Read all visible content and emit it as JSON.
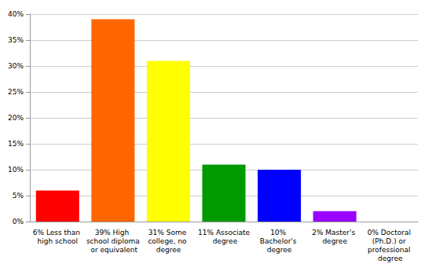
{
  "chart_data": {
    "type": "bar",
    "categories": [
      "6% Less than high school",
      "39% High school diploma or equivalent",
      "31% Some college, no degree",
      "11% Associate degree",
      "10% Bachelor's degree",
      "2% Master's degree",
      "0% Doctoral (Ph.D.) or professional degree"
    ],
    "values": [
      6,
      39,
      31,
      11,
      10,
      2,
      0
    ],
    "colors": [
      "#ff0000",
      "#ff6600",
      "#ffff00",
      "#009900",
      "#0000ff",
      "#9900ff",
      "#ff00ff"
    ],
    "ylim": [
      0,
      40
    ],
    "yticks": [
      {
        "value": 0,
        "label": "0%"
      },
      {
        "value": 5,
        "label": "5%"
      },
      {
        "value": 10,
        "label": "10%"
      },
      {
        "value": 15,
        "label": "15%"
      },
      {
        "value": 20,
        "label": "20%"
      },
      {
        "value": 25,
        "label": "25%"
      },
      {
        "value": 30,
        "label": "30%"
      },
      {
        "value": 35,
        "label": "35%"
      },
      {
        "value": 40,
        "label": "40%"
      }
    ],
    "grid": true
  }
}
